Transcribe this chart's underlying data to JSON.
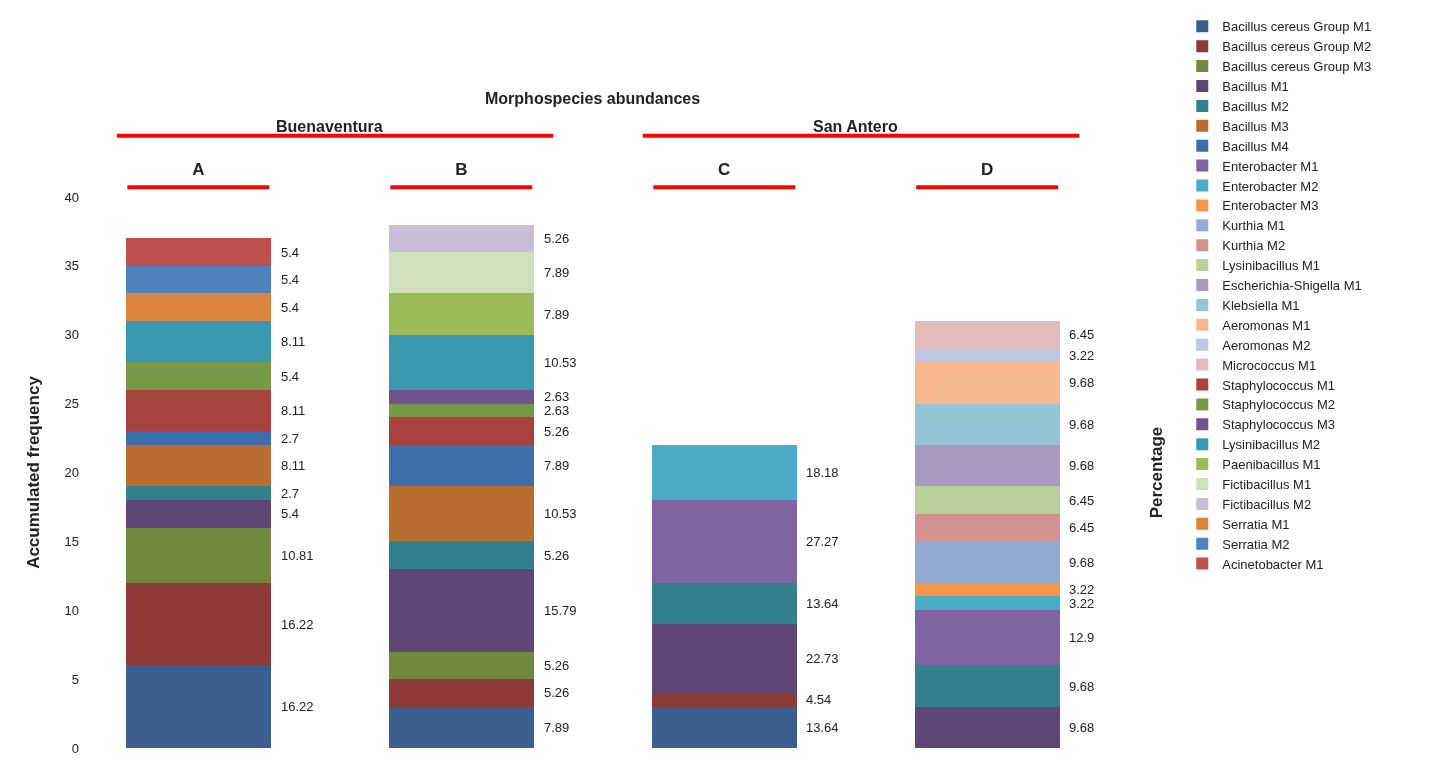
{
  "chart_data": {
    "type": "bar",
    "stacked": true,
    "title": "Morphospecies abundances",
    "ylabel": "Accumulated frequency",
    "y2label": "Percentage",
    "categories": [
      "A",
      "B",
      "C",
      "D"
    ],
    "ylim": [
      0,
      40
    ],
    "yticks": [
      0,
      5,
      10,
      15,
      20,
      25,
      30,
      35,
      40
    ],
    "legend": "right",
    "grid": false,
    "series": [
      {
        "name": "Bacillus cereus Group M1",
        "color": "#3a5f8f",
        "values": [
          6,
          3,
          3,
          null
        ]
      },
      {
        "name": "Bacillus cereus Group M2",
        "color": "#8e3a37",
        "values": [
          6,
          2,
          1,
          null
        ]
      },
      {
        "name": "Bacillus cereus Group M3",
        "color": "#71893e",
        "values": [
          4,
          2,
          null,
          null
        ]
      },
      {
        "name": "Bacillus M1",
        "color": "#5e4776",
        "values": [
          2,
          6,
          5,
          3
        ]
      },
      {
        "name": "Bacillus M2",
        "color": "#33808f",
        "values": [
          1,
          2,
          3,
          3
        ]
      },
      {
        "name": "Bacillus M3",
        "color": "#b86e30",
        "values": [
          3,
          4,
          null,
          null
        ]
      },
      {
        "name": "Bacillus M4",
        "color": "#3d6daa",
        "values": [
          1,
          3,
          null,
          null
        ]
      },
      {
        "name": "Enterobacter M1",
        "color": "#8063a1",
        "values": [
          null,
          null,
          6,
          4
        ]
      },
      {
        "name": "Enterobacter M2",
        "color": "#4aacc6",
        "values": [
          null,
          null,
          4,
          1
        ]
      },
      {
        "name": "Enterobacter M3",
        "color": "#f79646",
        "values": [
          null,
          null,
          null,
          1
        ]
      },
      {
        "name": "Kurthia M1",
        "color": "#95aad2",
        "values": [
          null,
          null,
          null,
          3
        ]
      },
      {
        "name": "Kurthia M2",
        "color": "#d39393",
        "values": [
          null,
          null,
          null,
          2
        ]
      },
      {
        "name": "Lysinibacillus M1",
        "color": "#b9d198",
        "values": [
          null,
          null,
          null,
          2
        ]
      },
      {
        "name": "Escherichia-Shigella M1",
        "color": "#a899be",
        "values": [
          null,
          null,
          null,
          3
        ]
      },
      {
        "name": "Klebsiella M1",
        "color": "#93c5d5",
        "values": [
          null,
          null,
          null,
          3
        ]
      },
      {
        "name": "Aeromonas M1",
        "color": "#f8b88f",
        "values": [
          null,
          null,
          null,
          3
        ]
      },
      {
        "name": "Aeromonas M2",
        "color": "#bcc8e2",
        "values": [
          null,
          null,
          null,
          1
        ]
      },
      {
        "name": "Micrococcus M1",
        "color": "#e0bcbc",
        "values": [
          null,
          null,
          null,
          2
        ]
      },
      {
        "name": "Staphylococcus M1",
        "color": "#a8423f",
        "values": [
          3,
          2,
          null,
          null
        ]
      },
      {
        "name": "Staphylococcus M2",
        "color": "#789a48",
        "values": [
          2,
          1,
          null,
          null
        ]
      },
      {
        "name": "Staphylococcus M3",
        "color": "#71548f",
        "values": [
          null,
          1,
          null,
          null
        ]
      },
      {
        "name": "Lysinibacillus M2",
        "color": "#3a98b0",
        "values": [
          3,
          4,
          null,
          null
        ]
      },
      {
        "name": "Paenibacillus M1",
        "color": "#9bbb59",
        "values": [
          null,
          3,
          null,
          null
        ]
      },
      {
        "name": "Fictibacillus M1",
        "color": "#d1dfba",
        "values": [
          null,
          3,
          null,
          null
        ]
      },
      {
        "name": "Fictibacillus M2",
        "color": "#c7bed8",
        "values": [
          null,
          2,
          null,
          null
        ]
      },
      {
        "name": "Serratia M1",
        "color": "#dc843f",
        "values": [
          2,
          null,
          null,
          null
        ]
      },
      {
        "name": "Serratia M2",
        "color": "#4f81bd",
        "values": [
          2,
          null,
          null,
          null
        ]
      },
      {
        "name": "Acinetobacter M1",
        "color": "#c0504d",
        "values": [
          2,
          null,
          null,
          null
        ]
      }
    ],
    "annotations": [
      "Buenaventura",
      "San Antero",
      "16.22",
      "16.22",
      "10.81",
      "5.4",
      "2.7",
      "8.11",
      "2.7",
      "8.11",
      "5.4",
      "8.11",
      "5.4",
      "5.4",
      "5.4",
      "7.89",
      "5.26",
      "5.26",
      "15.79",
      "5.26",
      "10.53",
      "7.89",
      "5.26",
      "2.63",
      "2.63",
      "10.53",
      "7.89",
      "7.89",
      "5.26",
      "13.64",
      "4.54",
      "22.73",
      "13.64",
      "27.27",
      "18.18",
      "9.68",
      "9.68",
      "12.9",
      "3.22",
      "3.22",
      "9.68",
      "6.45",
      "6.45",
      "9.68",
      "9.68",
      "9.68",
      "3.22",
      "6.45"
    ]
  }
}
